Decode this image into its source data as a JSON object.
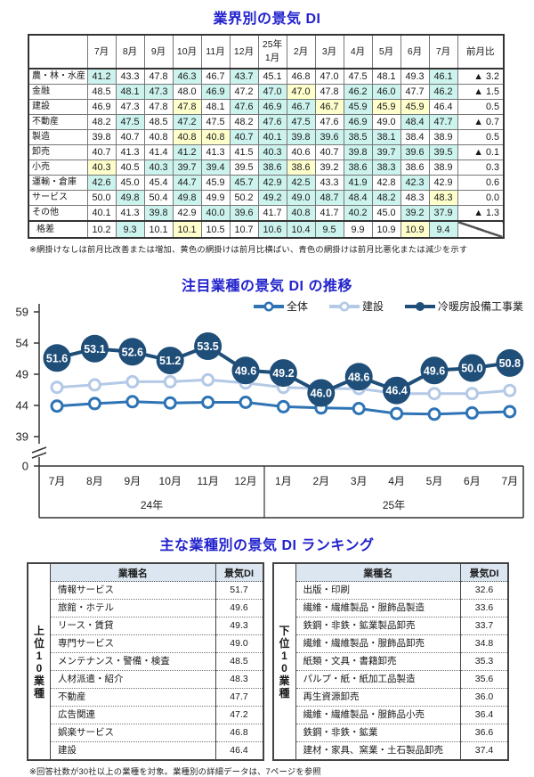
{
  "colors": {
    "accent_title": "#2222cd",
    "shade_worse": "#cdf3ee",
    "shade_flat": "#ffffcc",
    "rank_header_bg": "#dce6f1",
    "series_overall": "#2e74b5",
    "series_construction": "#b3c9e6",
    "series_hvac": "#1f4e79"
  },
  "industry_di": {
    "title": "業界別の景気 DI",
    "col_headers": [
      "7月",
      "8月",
      "9月",
      "10月",
      "11月",
      "12月",
      "25年\n1月",
      "2月",
      "3月",
      "4月",
      "5月",
      "6月",
      "7月",
      "前月比"
    ],
    "rows": [
      {
        "label": "農・林・水産",
        "values": [
          41.2,
          43.3,
          47.8,
          46.3,
          46.7,
          43.7,
          45.1,
          46.8,
          47.0,
          47.5,
          48.1,
          49.3,
          46.1
        ],
        "shades": "cwwcwcwwwwwwc",
        "mom": "▲ 3.2",
        "gap": false
      },
      {
        "label": "金融",
        "values": [
          48.5,
          48.1,
          47.3,
          48.0,
          46.9,
          47.2,
          47.0,
          47.0,
          47.8,
          46.2,
          46.0,
          47.7,
          46.2
        ],
        "shades": "wccwcwcywccwc",
        "mom": "▲ 1.5",
        "gap": false
      },
      {
        "label": "建設",
        "values": [
          46.9,
          47.3,
          47.8,
          47.8,
          48.1,
          47.6,
          46.9,
          46.7,
          46.7,
          45.9,
          45.9,
          45.9,
          46.4
        ],
        "shades": "wwwywcccycyyw",
        "mom": "0.5",
        "gap": false
      },
      {
        "label": "不動産",
        "values": [
          48.2,
          47.5,
          48.5,
          47.2,
          47.5,
          48.2,
          47.6,
          47.5,
          47.6,
          46.9,
          49.0,
          48.4,
          47.7
        ],
        "shades": "wcwcwwccwcwcc",
        "mom": "▲ 0.7",
        "gap": false
      },
      {
        "label": "製造",
        "values": [
          39.8,
          40.7,
          40.8,
          40.8,
          40.8,
          40.7,
          40.1,
          39.8,
          39.6,
          38.5,
          38.1,
          38.4,
          38.9
        ],
        "shades": "wwwyyccccccww",
        "mom": "0.5",
        "gap": false
      },
      {
        "label": "卸売",
        "values": [
          40.7,
          41.3,
          41.4,
          41.2,
          41.3,
          41.5,
          40.3,
          40.6,
          40.7,
          39.8,
          39.7,
          39.6,
          39.5
        ],
        "shades": "wwwcwwcwwcccc",
        "mom": "▲ 0.1",
        "gap": false
      },
      {
        "label": "小売",
        "values": [
          40.3,
          40.5,
          40.3,
          39.7,
          39.4,
          39.5,
          38.6,
          38.6,
          39.2,
          38.6,
          38.3,
          38.6,
          38.9
        ],
        "shades": "ywcccwcywccww",
        "mom": "0.3",
        "gap": false
      },
      {
        "label": "運輸・倉庫",
        "values": [
          42.6,
          45.0,
          45.4,
          44.7,
          45.9,
          45.7,
          42.9,
          42.5,
          43.3,
          41.9,
          42.8,
          42.3,
          42.9
        ],
        "shades": "cwwcwcccwcwcw",
        "mom": "0.6",
        "gap": false
      },
      {
        "label": "サービス",
        "values": [
          50.0,
          49.8,
          50.4,
          49.8,
          49.9,
          50.2,
          49.2,
          49.0,
          48.7,
          48.4,
          48.2,
          48.3,
          48.3
        ],
        "shades": "wcwcwwcccccwy",
        "mom": "0.0",
        "gap": false
      },
      {
        "label": "その他",
        "values": [
          40.1,
          41.3,
          39.8,
          42.9,
          40.0,
          39.6,
          41.7,
          40.8,
          41.7,
          40.2,
          45.0,
          39.2,
          37.9
        ],
        "shades": "wwcwccwcwcwcc",
        "mom": "▲ 1.3",
        "gap": false
      },
      {
        "label": "格差",
        "values": [
          10.2,
          9.3,
          10.1,
          10.1,
          10.5,
          10.7,
          10.6,
          10.4,
          9.5,
          9.9,
          10.9,
          10.9,
          9.4
        ],
        "shades": "wcwywwcccwwyc",
        "mom": null,
        "gap": true
      }
    ],
    "footnote": "※網掛けなしは前月比改善または増加、黄色の網掛けは前月比横ばい、青色の網掛けは前月比悪化または減少を示す"
  },
  "chart_data": {
    "type": "line",
    "title": "注目業種の景気 DI の推移",
    "categories": [
      "7月",
      "8月",
      "9月",
      "10月",
      "11月",
      "12月",
      "1月",
      "2月",
      "3月",
      "4月",
      "5月",
      "6月",
      "7月"
    ],
    "year_groups": [
      {
        "label": "24年",
        "months": 6
      },
      {
        "label": "25年",
        "months": 7
      }
    ],
    "yticks": [
      59,
      54,
      49,
      44,
      39,
      0
    ],
    "ylim": [
      39,
      59
    ],
    "axis_break": true,
    "grid": false,
    "legend_position": "top-right",
    "series": [
      {
        "name": "建設",
        "key": "construction",
        "color": "#b3c9e6",
        "marker": "ring",
        "values": [
          46.9,
          47.3,
          47.8,
          47.8,
          48.1,
          47.6,
          46.9,
          46.7,
          46.7,
          45.9,
          45.9,
          45.9,
          46.4
        ]
      },
      {
        "name": "全体",
        "key": "overall",
        "color": "#2e74b5",
        "marker": "ring",
        "values": [
          43.9,
          44.3,
          44.6,
          44.4,
          44.5,
          44.5,
          43.8,
          43.6,
          43.5,
          42.7,
          42.6,
          42.8,
          43.0
        ]
      },
      {
        "name": "冷暖房設備工事業",
        "key": "hvac-installation",
        "color": "#1f4e79",
        "marker": "labeled-bubble",
        "values": [
          51.6,
          53.1,
          52.6,
          51.2,
          53.5,
          49.6,
          49.2,
          46.0,
          48.6,
          46.4,
          49.6,
          50.0,
          50.8
        ]
      }
    ],
    "legend_order": [
      "overall",
      "construction",
      "hvac-installation"
    ]
  },
  "ranking": {
    "title": "主な業種別の景気 DI ランキング",
    "col_industry": "業種名",
    "col_di": "景気DI",
    "top": {
      "side_label": "上位10業種",
      "rows": [
        {
          "name": "情報サービス",
          "di": 51.7
        },
        {
          "name": "旅館・ホテル",
          "di": 49.6
        },
        {
          "name": "リース・賃貸",
          "di": 49.3
        },
        {
          "name": "専門サービス",
          "di": 49.0
        },
        {
          "name": "メンテナンス・警備・検査",
          "di": 48.5
        },
        {
          "name": "人材派遣・紹介",
          "di": 48.3
        },
        {
          "name": "不動産",
          "di": 47.7
        },
        {
          "name": "広告関連",
          "di": 47.2
        },
        {
          "name": "娯楽サービス",
          "di": 46.8
        },
        {
          "name": "建設",
          "di": 46.4
        }
      ]
    },
    "bottom": {
      "side_label": "下位10業種",
      "rows": [
        {
          "name": "出版・印刷",
          "di": 32.6
        },
        {
          "name": "繊維・繊維製品・服飾品製造",
          "di": 33.6
        },
        {
          "name": "鉄鋼・非鉄・鉱業製品卸売",
          "di": 33.7
        },
        {
          "name": "繊維・繊維製品・服飾品卸売",
          "di": 34.8
        },
        {
          "name": "紙類・文具・書籍卸売",
          "di": 35.3
        },
        {
          "name": "パルプ・紙・紙加工品製造",
          "di": 35.6
        },
        {
          "name": "再生資源卸売",
          "di": 36.0
        },
        {
          "name": "繊維・繊維製品・服飾品小売",
          "di": 36.4
        },
        {
          "name": "鉄鋼・非鉄・鉱業",
          "di": 36.6
        },
        {
          "name": "建材・家具、窯業・土石製品卸売",
          "di": 37.4
        }
      ]
    },
    "footnote": "※回答社数が30社以上の業種を対象。業種別の詳細データは、7ページを参照"
  }
}
